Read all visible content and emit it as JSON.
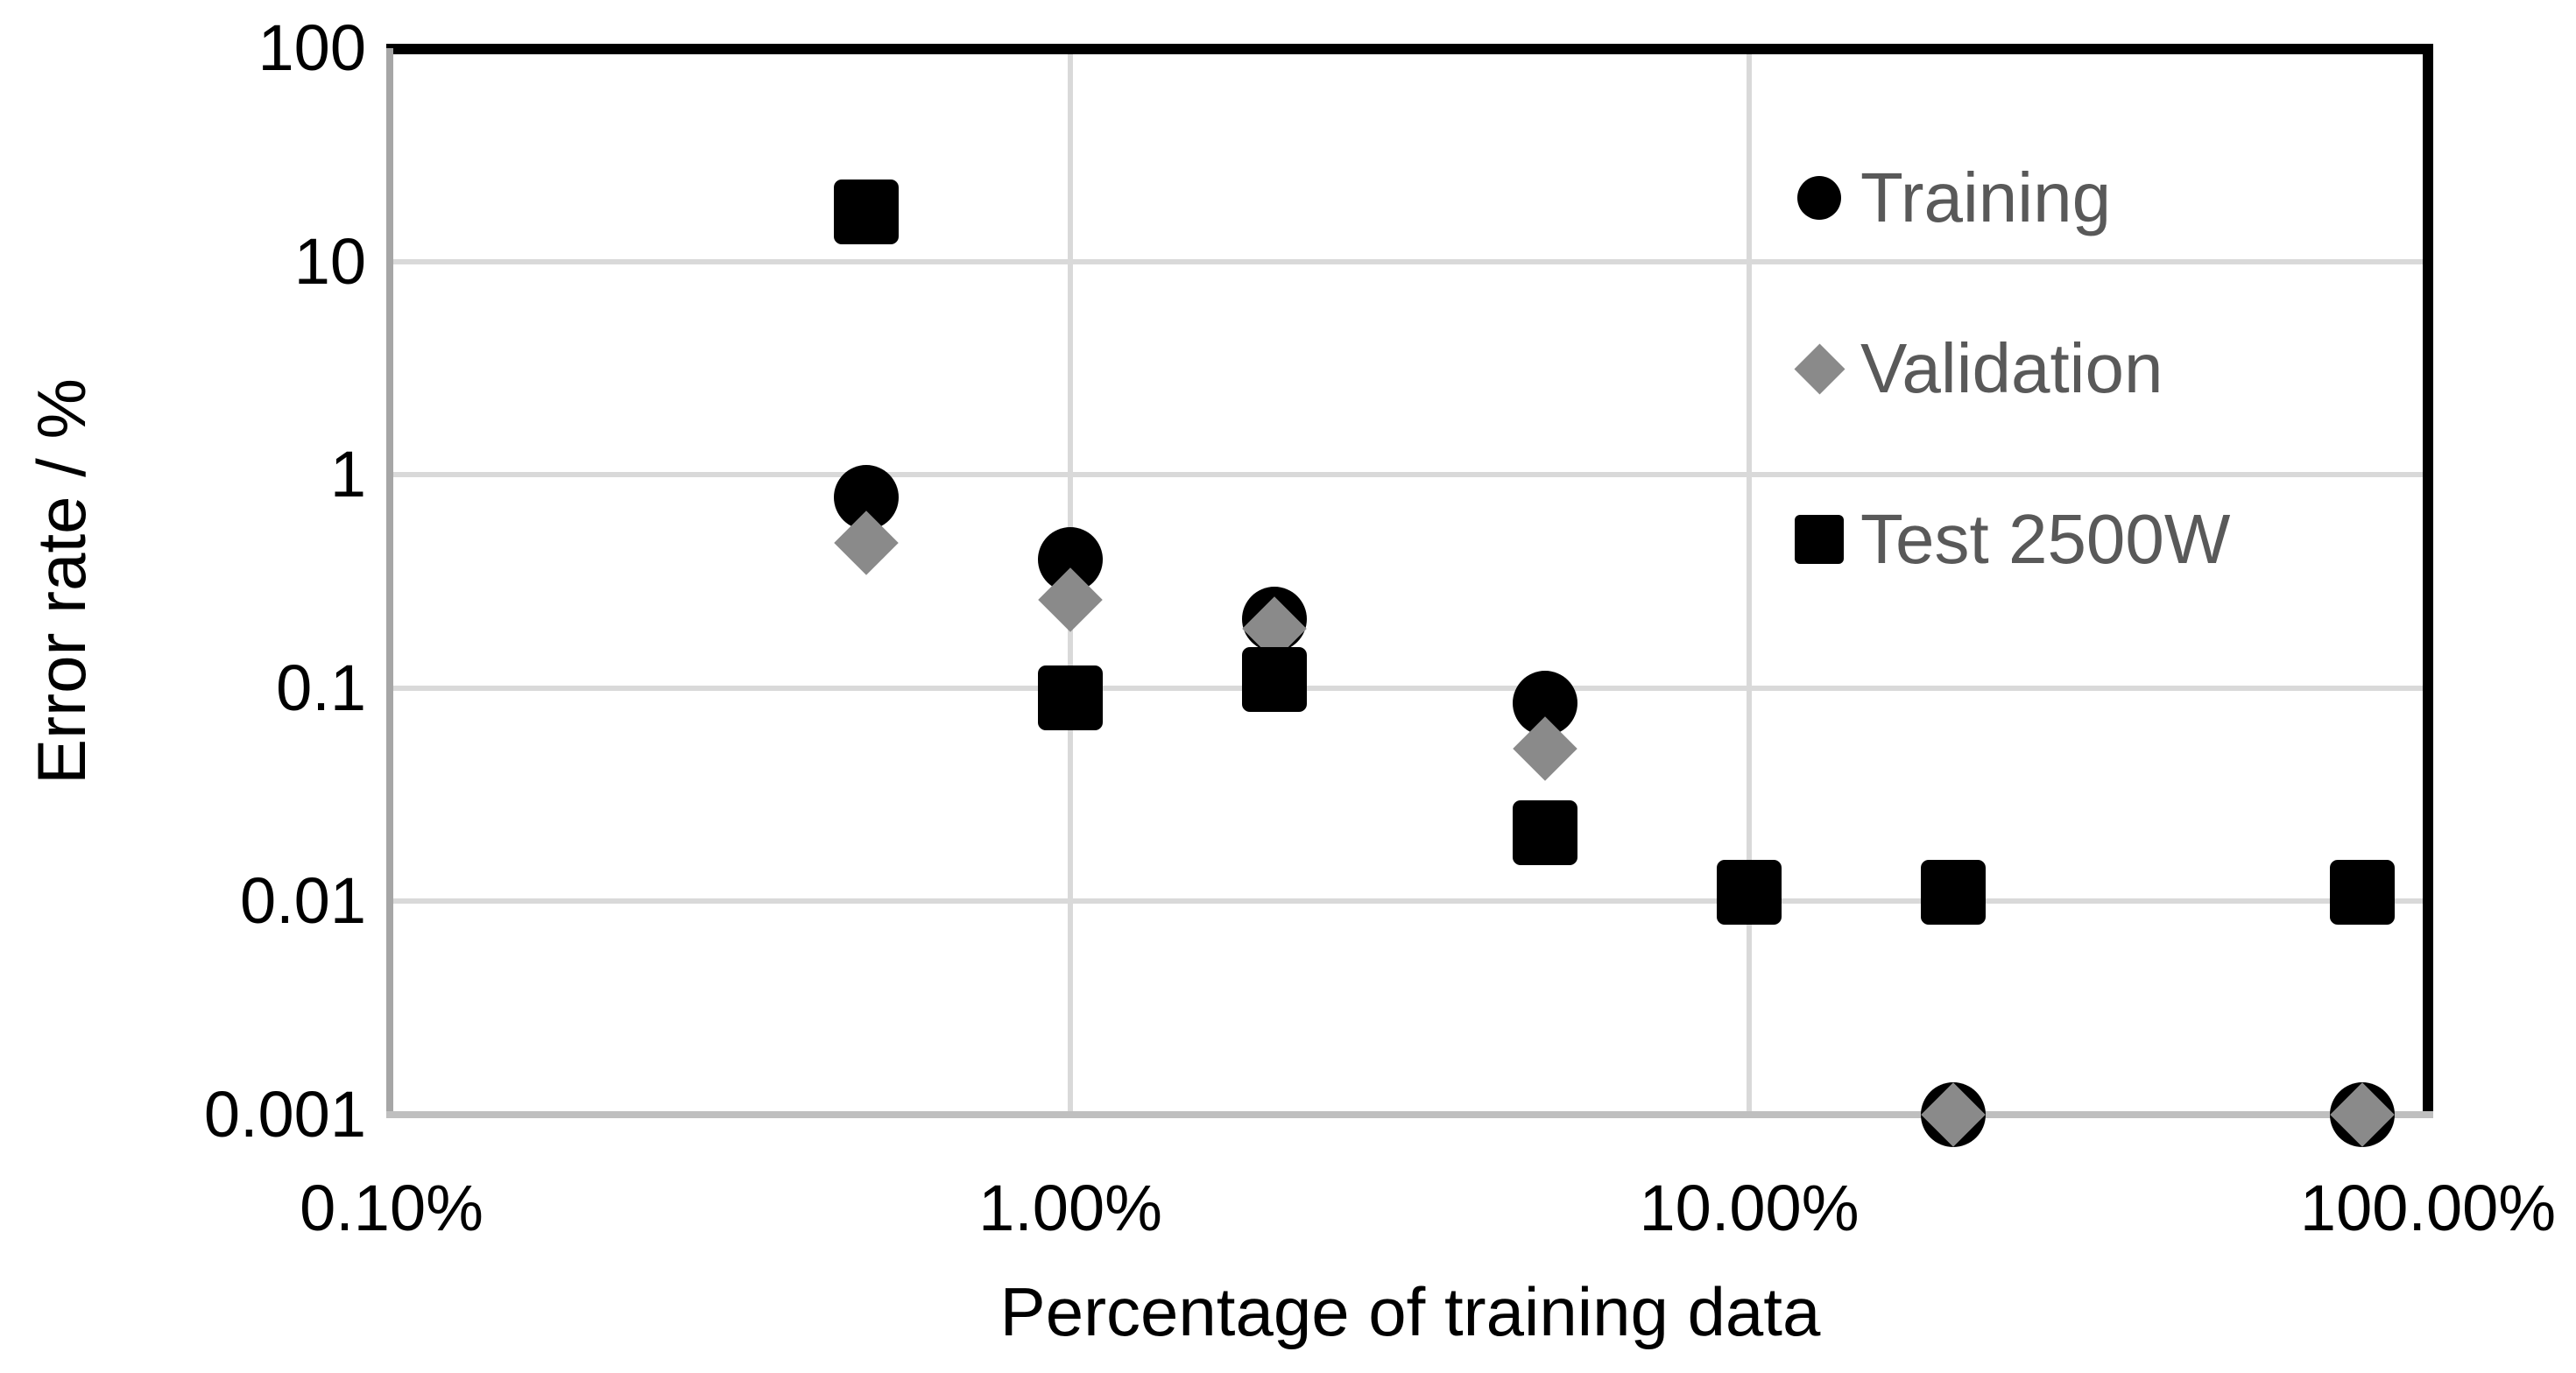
{
  "chart_data": {
    "type": "scatter",
    "title": "",
    "xlabel": "Percentage of training data",
    "ylabel": "Error rate / %",
    "grid": true,
    "legend_position": "inside-top-right",
    "x_axis": {
      "scale": "log",
      "min": 0.1,
      "max": 100,
      "ticks": [
        {
          "value": 0.1,
          "label": "0.10%"
        },
        {
          "value": 1,
          "label": "1.00%"
        },
        {
          "value": 10,
          "label": "10.00%"
        },
        {
          "value": 100,
          "label": "100.00%"
        }
      ]
    },
    "y_axis": {
      "scale": "log",
      "min": 0.001,
      "max": 100,
      "ticks": [
        {
          "value": 100,
          "label": "100"
        },
        {
          "value": 10,
          "label": "10"
        },
        {
          "value": 1,
          "label": "1"
        },
        {
          "value": 0.1,
          "label": "0.1"
        },
        {
          "value": 0.01,
          "label": "0.01"
        },
        {
          "value": 0.001,
          "label": "0.001"
        }
      ]
    },
    "series": [
      {
        "name": "Training",
        "marker": "circle",
        "color": "#000000",
        "points": [
          {
            "x": 0.5,
            "y": 0.78
          },
          {
            "x": 1,
            "y": 0.4
          },
          {
            "x": 2,
            "y": 0.21
          },
          {
            "x": 5,
            "y": 0.085
          },
          {
            "x": 20,
            "y": 0.001
          },
          {
            "x": 80,
            "y": 0.001
          }
        ]
      },
      {
        "name": "Validation",
        "marker": "diamond",
        "color": "#8A8A8A",
        "points": [
          {
            "x": 0.5,
            "y": 0.48
          },
          {
            "x": 1,
            "y": 0.26
          },
          {
            "x": 2,
            "y": 0.19
          },
          {
            "x": 5,
            "y": 0.052
          },
          {
            "x": 20,
            "y": 0.001
          },
          {
            "x": 80,
            "y": 0.001
          }
        ]
      },
      {
        "name": "Test 2500W",
        "marker": "square",
        "color": "#000000",
        "points": [
          {
            "x": 0.5,
            "y": 17
          },
          {
            "x": 1,
            "y": 0.09
          },
          {
            "x": 2,
            "y": 0.11
          },
          {
            "x": 5,
            "y": 0.021
          },
          {
            "x": 10,
            "y": 0.011
          },
          {
            "x": 20,
            "y": 0.011
          },
          {
            "x": 80,
            "y": 0.011
          }
        ]
      }
    ],
    "colors": {
      "gridline": "#D9D9D9",
      "x_axis_line": "#BFBFBF",
      "y_axis_line": "#A6A6A6",
      "plot_border": "#000000",
      "legend_text": "#595959",
      "tick_text": "#000000"
    }
  }
}
